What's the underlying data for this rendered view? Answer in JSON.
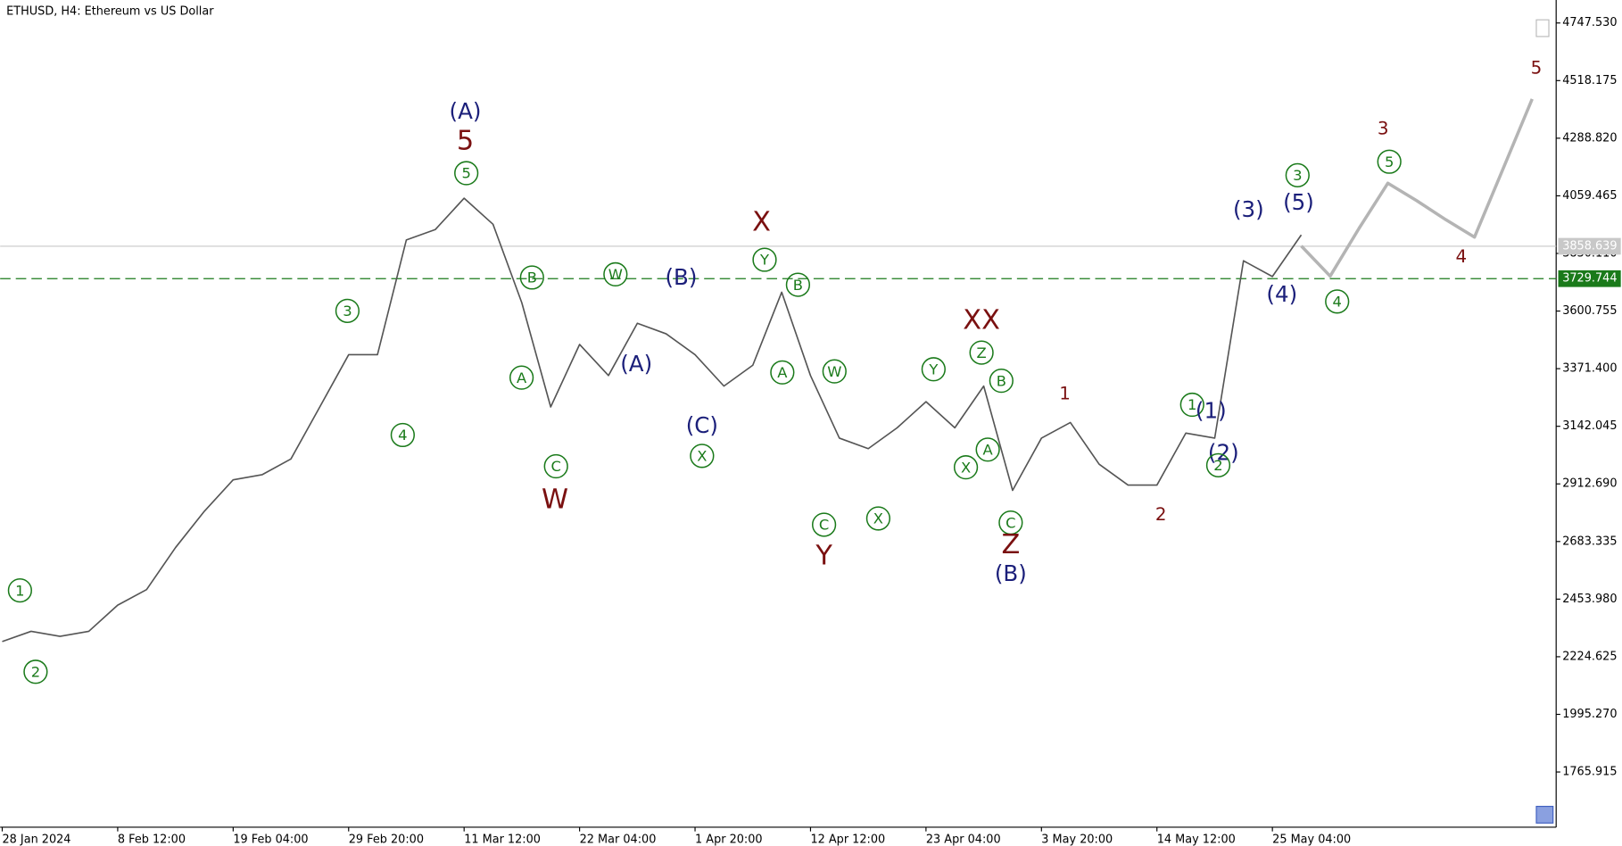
{
  "chart_data": {
    "type": "line",
    "title": "ETHUSD, H4:  Ethereum vs US Dollar",
    "categories": [
      "28 Jan 2024",
      null,
      null,
      null,
      "8 Feb 12:00",
      null,
      null,
      null,
      "19 Feb 04:00",
      null,
      null,
      null,
      "29 Feb 20:00",
      null,
      null,
      null,
      "11 Mar 12:00",
      null,
      null,
      null,
      "22 Mar 04:00",
      null,
      null,
      null,
      "1 Apr 20:00",
      null,
      null,
      null,
      "12 Apr 12:00",
      null,
      null,
      null,
      "23 Apr 04:00",
      null,
      null,
      null,
      "3 May 20:00",
      null,
      null,
      null,
      "14 May 12:00",
      null,
      null,
      null,
      "25 May 04:00",
      null,
      null,
      null,
      null,
      null,
      null,
      null,
      null,
      null
    ],
    "series": [
      {
        "color": "#555555",
        "values": [
          2285,
          2326,
          2306,
          2326,
          2430,
          2492,
          2659,
          2804,
          2929,
          2949,
          3012,
          3219,
          3427,
          3427,
          3884,
          3925,
          4050,
          3946,
          3634,
          3219,
          3468,
          3344,
          3552,
          3510,
          3427,
          3302,
          3385,
          3676,
          3344,
          3095,
          3053,
          3136,
          3240,
          3136,
          3302,
          2887,
          3095,
          3157,
          2991,
          2908,
          2908,
          3115,
          3095,
          3801,
          3738,
          3904,
          null,
          null,
          null,
          null,
          null,
          null,
          null,
          null
        ]
      },
      {
        "color": "#b4b4b4",
        "values": [
          null,
          null,
          null,
          null,
          null,
          null,
          null,
          null,
          null,
          null,
          null,
          null,
          null,
          null,
          null,
          null,
          null,
          null,
          null,
          null,
          null,
          null,
          null,
          null,
          null,
          null,
          null,
          null,
          null,
          null,
          null,
          null,
          null,
          null,
          null,
          null,
          null,
          null,
          null,
          null,
          null,
          null,
          null,
          null,
          null,
          3860,
          3740,
          3930,
          4110,
          4040,
          3965,
          3895,
          4170,
          4445
        ]
      }
    ],
    "ylim": [
      1546,
      4839
    ],
    "yticks": [
      {
        "value": 4747.53,
        "label": "4747.530"
      },
      4518.175,
      {
        "value": 4288.82,
        "label": "4288.820"
      },
      4059.465,
      {
        "value": 3830.11,
        "label": "3830.110"
      },
      3600.755,
      {
        "value": 3371.4,
        "label": "3371.400"
      },
      3142.045,
      {
        "value": 2912.69,
        "label": "2912.690"
      },
      2683.335,
      {
        "value": 2453.98,
        "label": "2453.980"
      },
      2224.625,
      {
        "value": 1995.27,
        "label": "1995.270"
      },
      1765.915
    ],
    "price_lines": [
      {
        "value": 3858.639,
        "color": "#c8c8c8",
        "style": "solid"
      },
      {
        "value": 3729.744,
        "color": "#1a7a1a",
        "style": "dashed"
      }
    ],
    "annotations": [
      {
        "text": "(A)",
        "color": "#1b1f7a",
        "size": "medium"
      },
      {
        "text": "5",
        "color": "#7a1010",
        "size": "large"
      },
      {
        "text": "5",
        "color": "#1a7a1a",
        "circled": true
      },
      {
        "text": "1",
        "color": "#1a7a1a",
        "circled": true
      },
      {
        "text": "2",
        "color": "#1a7a1a",
        "circled": true
      },
      {
        "text": "3",
        "color": "#1a7a1a",
        "circled": true
      },
      {
        "text": "4",
        "color": "#1a7a1a",
        "circled": true
      },
      {
        "text": "B",
        "color": "#1a7a1a",
        "circled": true
      },
      {
        "text": "A",
        "color": "#1a7a1a",
        "circled": true
      },
      {
        "text": "C",
        "color": "#1a7a1a",
        "circled": true
      },
      {
        "text": "W",
        "color": "#7a1010",
        "size": "large"
      },
      {
        "text": "W",
        "color": "#1a7a1a",
        "circled": true
      },
      {
        "text": "(B)",
        "color": "#1b1f7a",
        "size": "medium"
      },
      {
        "text": "(A)",
        "color": "#1b1f7a",
        "size": "medium"
      },
      {
        "text": "(C)",
        "color": "#1b1f7a",
        "size": "medium"
      },
      {
        "text": "X",
        "color": "#1a7a1a",
        "circled": true
      },
      {
        "text": "X",
        "color": "#7a1010",
        "size": "large"
      },
      {
        "text": "Y",
        "color": "#1a7a1a",
        "circled": true
      },
      {
        "text": "B",
        "color": "#1a7a1a",
        "circled": true
      },
      {
        "text": "A",
        "color": "#1a7a1a",
        "circled": true
      },
      {
        "text": "W",
        "color": "#1a7a1a",
        "circled": true
      },
      {
        "text": "C",
        "color": "#1a7a1a",
        "circled": true
      },
      {
        "text": "Y",
        "color": "#7a1010",
        "size": "large"
      },
      {
        "text": "X",
        "color": "#1a7a1a",
        "circled": true
      },
      {
        "text": "Y",
        "color": "#1a7a1a",
        "circled": true
      },
      {
        "text": "XX",
        "color": "#7a1010",
        "size": "large"
      },
      {
        "text": "Z",
        "color": "#1a7a1a",
        "circled": true
      },
      {
        "text": "B",
        "color": "#1a7a1a",
        "circled": true
      },
      {
        "text": "A",
        "color": "#1a7a1a",
        "circled": true
      },
      {
        "text": "X",
        "color": "#1a7a1a",
        "circled": true
      },
      {
        "text": "C",
        "color": "#1a7a1a",
        "circled": true
      },
      {
        "text": "Z",
        "color": "#7a1010",
        "size": "large"
      },
      {
        "text": "(B)",
        "color": "#1b1f7a",
        "size": "medium"
      },
      {
        "text": "1",
        "color": "#7a1010",
        "size": "small"
      },
      {
        "text": "2",
        "color": "#7a1010",
        "size": "small"
      },
      {
        "text": "1",
        "color": "#1a7a1a",
        "circled": true
      },
      {
        "text": "(1)",
        "color": "#1b1f7a",
        "size": "medium"
      },
      {
        "text": "(2)",
        "color": "#1b1f7a",
        "size": "medium"
      },
      {
        "text": "2",
        "color": "#1a7a1a",
        "circled": true
      },
      {
        "text": "(3)",
        "color": "#1b1f7a",
        "size": "medium"
      },
      {
        "text": "3",
        "color": "#1a7a1a",
        "circled": true
      },
      {
        "text": "(5)",
        "color": "#1b1f7a",
        "size": "medium"
      },
      {
        "text": "(4)",
        "color": "#1b1f7a",
        "size": "medium"
      },
      {
        "text": "4",
        "color": "#1a7a1a",
        "circled": true
      },
      {
        "text": "3",
        "color": "#7a1010",
        "size": "small"
      },
      {
        "text": "5",
        "color": "#1a7a1a",
        "circled": true
      },
      {
        "text": "4",
        "color": "#7a1010",
        "size": "small"
      },
      {
        "text": "5",
        "color": "#7a1010",
        "size": "small"
      }
    ]
  }
}
